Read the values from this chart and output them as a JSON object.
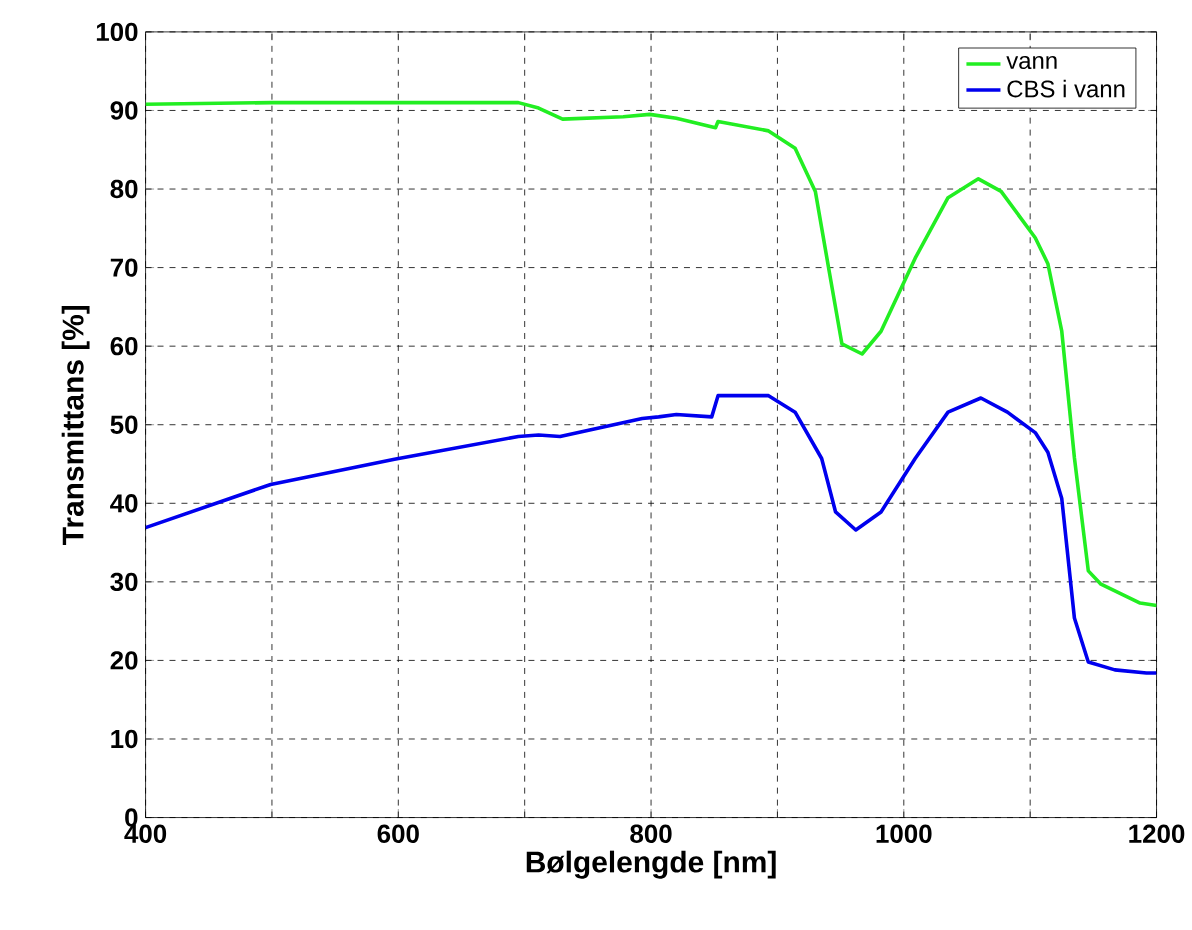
{
  "chart_data": {
    "type": "line",
    "xlabel": "Bølgelengde [nm]",
    "ylabel": "Transmittans [%]",
    "xlim": [
      400,
      1200
    ],
    "ylim": [
      0,
      100
    ],
    "xticks": [
      400,
      {
        "value": 500,
        "label": null
      },
      600,
      {
        "value": 700,
        "label": null
      },
      800,
      {
        "value": 900,
        "label": null
      },
      1000,
      {
        "value": 1100,
        "label": null
      },
      1200
    ],
    "yticks": [
      0,
      10,
      20,
      30,
      40,
      50,
      60,
      70,
      80,
      90,
      100
    ],
    "grid": true,
    "legend": "top right",
    "series": [
      {
        "name": "vann",
        "color": "#22ee22",
        "x": [
          400,
          500,
          600,
          695,
          711,
          730,
          778,
          799,
          820,
          851,
          853,
          893,
          914,
          930,
          941,
          951,
          967,
          982,
          1009,
          1035,
          1059,
          1077,
          1104,
          1114,
          1125,
          1135,
          1146,
          1156,
          1187,
          1200
        ],
        "values": [
          90.8,
          91,
          91,
          91,
          90.3,
          88.9,
          89.2,
          89.5,
          89,
          87.8,
          88.6,
          87.4,
          85.2,
          79.7,
          69.5,
          60.3,
          59,
          61.9,
          71.2,
          78.9,
          81.3,
          79.7,
          73.8,
          70.5,
          61.9,
          45.8,
          31.4,
          29.7,
          27.3,
          27
        ]
      },
      {
        "name": "CBS i vann",
        "color": "#0000ee",
        "x": [
          400,
          499,
          597,
          695,
          711,
          728,
          793,
          806,
          820,
          848,
          853,
          893,
          914,
          935,
          946,
          962,
          982,
          1009,
          1035,
          1061,
          1082,
          1104,
          1114,
          1125,
          1135,
          1146,
          1167,
          1192,
          1200
        ],
        "values": [
          36.9,
          42.4,
          45.6,
          48.5,
          48.7,
          48.5,
          50.8,
          51,
          51.3,
          51,
          53.7,
          53.7,
          51.6,
          45.7,
          38.9,
          36.6,
          38.9,
          45.7,
          51.6,
          53.4,
          51.6,
          49,
          46.5,
          40.6,
          25.4,
          19.8,
          18.8,
          18.4,
          18.4
        ]
      }
    ]
  }
}
